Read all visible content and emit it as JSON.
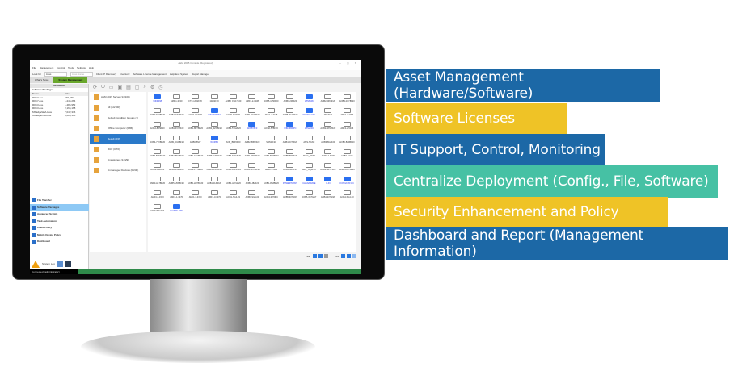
{
  "window": {
    "title": "AEM 2015 Console (Registered)",
    "controls": "— ▢ ✕"
  },
  "menu": [
    "File",
    "Management",
    "Control",
    "Tools",
    "Settings",
    "Help"
  ],
  "toolbar": {
    "look_for_label": "Look for",
    "look_for_value": "Alias",
    "alias_name": "Alias Name",
    "client_discovery": "Client IP Discovery",
    "inventory": "Inventory",
    "software_license": "Software License Management",
    "helpdesk": "Helpdesk System",
    "report_manager": "Report Manager"
  },
  "tabs": [
    {
      "label": "What's News"
    },
    {
      "label": "System Management"
    }
  ],
  "left_panel": {
    "header": "Resources",
    "title": "Software Packages",
    "columns": [
      "Name",
      "Size"
    ],
    "packages": [
      {
        "name": "R#C3.exe",
        "size": "945,776"
      },
      {
        "name": "R#C7.exe",
        "size": "1,245,264"
      },
      {
        "name": "R#C3.exe",
        "size": "1,485,952"
      },
      {
        "name": "R#C3.exe",
        "size": "2,165,168"
      },
      {
        "name": "MSEdgeWVH.exe",
        "size": "7,042,376"
      },
      {
        "name": "MSEdgeUSB.exe",
        "size": "8,085,160"
      }
    ],
    "nav": [
      "File Transfer",
      "Software Packages",
      "Advanced Scripts",
      "Task Automation",
      "Client Policy",
      "Mobile Device Policy",
      "Dashboard"
    ],
    "system_log": "System Log"
  },
  "tree": [
    "AEM 2015 Server (14/100)",
    "All (14/100)",
    "Default Condition Groups (1)",
    "Offline Computer (0/86)",
    "Result (0/0)",
    "BUU (0/70)",
    "Unassigned (14/29)",
    "Unmanaged Devices (0/238)"
  ],
  "computers": [
    {
      "name": "WIN8068",
      "online": true
    },
    {
      "name": "AMF-1-3240",
      "online": false
    },
    {
      "name": "FTC-1A22F20",
      "online": false
    },
    {
      "name": "1W02F20",
      "online": false
    },
    {
      "name": "AOB3_1W17F20",
      "online": false
    },
    {
      "name": "AMF1-2-3238",
      "online": false
    },
    {
      "name": "AOB5-1256F20",
      "online": false
    },
    {
      "name": "AOB3-238F20",
      "online": false
    },
    {
      "name": "WIN8106",
      "online": true
    },
    {
      "name": "AOB2-39V8F20",
      "online": false
    },
    {
      "name": "AOB3-2CY8F20",
      "online": false
    },
    {
      "name": "AOB3-6STBF20",
      "online": false
    },
    {
      "name": "AOB4-07G8F20",
      "online": false
    },
    {
      "name": "AOB2-3S2F20",
      "online": false
    },
    {
      "name": "WIN10TX464",
      "online": true
    },
    {
      "name": "AOB5-3KZF20",
      "online": false
    },
    {
      "name": "AOB1-3CYBF20",
      "online": false
    },
    {
      "name": "AMF1-2-3415",
      "online": false
    },
    {
      "name": "AOB5-3GY8F20",
      "online": false
    },
    {
      "name": "WIN7X64-PC",
      "online": true
    },
    {
      "name": "ATF2F20",
      "online": false
    },
    {
      "name": "AMF1-2-4283",
      "online": false
    },
    {
      "name": "AOB4-8W9F20",
      "online": false
    },
    {
      "name": "AOB1-4V78F20",
      "online": false
    },
    {
      "name": "AOB2-8NTBF20",
      "online": false
    },
    {
      "name": "AOB4_4ZNBF20",
      "online": false
    },
    {
      "name": "AOB3-5TG2F20",
      "online": false
    },
    {
      "name": "WIN8X6F3",
      "online": true
    },
    {
      "name": "AOB2-5Z8F20",
      "online": false
    },
    {
      "name": "WIN7686-PC",
      "online": true
    },
    {
      "name": "WIN2003",
      "online": true
    },
    {
      "name": "AOB2-5PG8F20",
      "online": false
    },
    {
      "name": "AMF1-2-5106",
      "online": false
    },
    {
      "name": "AOB4-7TXBF20",
      "online": false
    },
    {
      "name": "AOB1_01G8F20",
      "online": false
    },
    {
      "name": "AOB6-8627",
      "online": false
    },
    {
      "name": "WIN864",
      "online": true
    },
    {
      "name": "AOB_B8P2F20",
      "online": false
    },
    {
      "name": "AOB2-B8P2F20",
      "online": false
    },
    {
      "name": "SWGBF20",
      "online": false
    },
    {
      "name": "AOB4-5V78F20",
      "online": false
    },
    {
      "name": "AMS-TIFAN",
      "online": false
    },
    {
      "name": "AOB3-8G2F20",
      "online": false
    },
    {
      "name": "AOB5-B40BF20",
      "online": false
    },
    {
      "name": "AOB3-B7NBF20",
      "online": false
    },
    {
      "name": "AOB2-8TG8F20",
      "online": false
    },
    {
      "name": "AOB1-C8YBF20",
      "online": false
    },
    {
      "name": "AOB5-CZN2F20",
      "online": false
    },
    {
      "name": "AOB5-D1N2F20",
      "online": false
    },
    {
      "name": "AOB1-D8YBF20",
      "online": false
    },
    {
      "name": "AOB2-5LYBF20",
      "online": false
    },
    {
      "name": "AOB5-5PWF20",
      "online": false
    },
    {
      "name": "AMF4_2WTS",
      "online": false
    },
    {
      "name": "AMF1-2-F125",
      "online": false
    },
    {
      "name": "AOB2-F4HB",
      "online": false
    },
    {
      "name": "AOB3-F4ZF20",
      "online": false
    },
    {
      "name": "AOB1-KJ6BF20",
      "online": false
    },
    {
      "name": "AOB2-FTTBF20",
      "online": false
    },
    {
      "name": "AOB4-G1S8F20",
      "online": false
    },
    {
      "name": "AOB1-G2ZPF20",
      "online": false
    },
    {
      "name": "AOB5-G7PGF20",
      "online": false
    },
    {
      "name": "AMF2-2-GL3",
      "online": false
    },
    {
      "name": "AOB5-GLXF15",
      "online": false
    },
    {
      "name": "AMF_GQ9F20",
      "online": false
    },
    {
      "name": "AOB3-GZ7YF20",
      "online": false
    },
    {
      "name": "AOB2-H5YBF20",
      "online": false
    },
    {
      "name": "AMF3-HL7BF20",
      "online": false
    },
    {
      "name": "AOB5-H5XBF20",
      "online": false
    },
    {
      "name": "AOB4-HD7BF20",
      "online": false
    },
    {
      "name": "AOB1-J1Z9F20",
      "online": false
    },
    {
      "name": "AOB4-J2YGF20",
      "online": false
    },
    {
      "name": "AOB3-J8ZF20",
      "online": false
    },
    {
      "name": "AOB4-JM2BF20",
      "online": false
    },
    {
      "name": "POWERTWINS",
      "online": true
    },
    {
      "name": "CHANAWATE",
      "online": true
    },
    {
      "name": "O-IN",
      "online": true
    },
    {
      "name": "KONGKIAT-PC",
      "online": true
    },
    {
      "name": "AMF4-2-3370",
      "online": false
    },
    {
      "name": "AMF4-1-3370",
      "online": false
    },
    {
      "name": "AMF1-3-3370",
      "online": false
    },
    {
      "name": "AMF1-3-3370",
      "online": false
    },
    {
      "name": "AOB1-SG4-03",
      "online": false
    },
    {
      "name": "AOB3-SG4-03",
      "online": false
    },
    {
      "name": "AOB3-3370PC",
      "online": false
    },
    {
      "name": "AOB5-3370215",
      "online": false
    },
    {
      "name": "AOB5-3370217",
      "online": false
    },
    {
      "name": "AOB4-3370226",
      "online": false
    },
    {
      "name": "AOB4-SG4-03",
      "online": false
    },
    {
      "name": "HP-AOB5-S24",
      "online": false
    },
    {
      "name": "PHISAN-WIN",
      "online": true
    }
  ],
  "filter": {
    "filter_label": "Filter",
    "view_label": "View"
  },
  "status_bar": "Connected (administrator)",
  "features": [
    {
      "label": "Asset Management (Hardware/Software)",
      "color": "#1c68a6"
    },
    {
      "label": "Software Licenses",
      "color": "#efc326"
    },
    {
      "label": "IT Support, Control, Monitoring",
      "color": "#1c68a6"
    },
    {
      "label": "Centralize Deployment (Config., File, Software)",
      "color": "#46c1a4"
    },
    {
      "label": "Security Enhancement and Policy",
      "color": "#efc326"
    },
    {
      "label": "Dashboard and Report (Management Information)",
      "color": "#1c68a6"
    }
  ]
}
